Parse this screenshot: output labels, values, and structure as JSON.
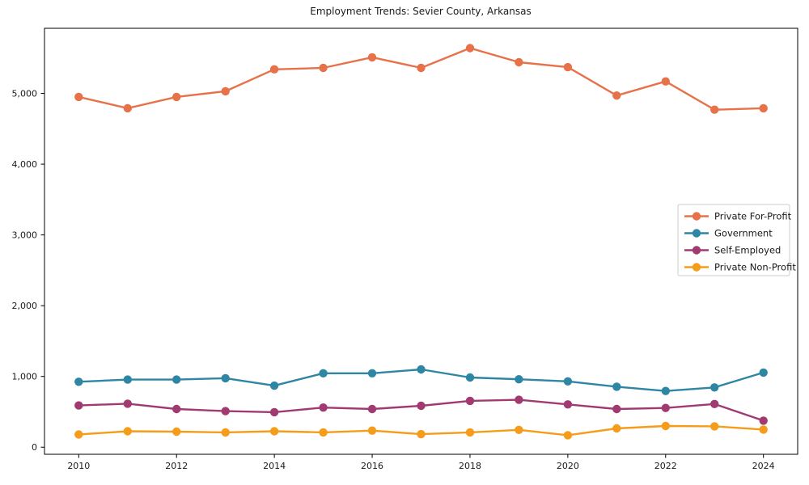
{
  "chart_data": {
    "type": "line",
    "title": "Employment Trends: Sevier County, Arkansas",
    "xlabel": "",
    "ylabel": "",
    "grid": false,
    "legend_position": "center right",
    "x": [
      2010,
      2011,
      2012,
      2013,
      2014,
      2015,
      2016,
      2017,
      2018,
      2019,
      2020,
      2021,
      2022,
      2023,
      2024
    ],
    "x_ticks": [
      2010,
      2012,
      2014,
      2016,
      2018,
      2020,
      2022,
      2024
    ],
    "x_tick_labels": [
      "2010",
      "2012",
      "2014",
      "2016",
      "2018",
      "2020",
      "2022",
      "2024"
    ],
    "y_ticks": [
      0,
      1000,
      2000,
      3000,
      4000,
      5000
    ],
    "y_tick_labels": [
      "0",
      "1,000",
      "2,000",
      "3,000",
      "4,000",
      "5,000"
    ],
    "xlim": [
      2009.3,
      2024.7
    ],
    "ylim": [
      -100,
      5920
    ],
    "series": [
      {
        "name": "Private For-Profit",
        "color": "#e7724a",
        "values": [
          4950,
          4790,
          4950,
          5030,
          5340,
          5360,
          5510,
          5360,
          5640,
          5440,
          5370,
          4970,
          5170,
          4770,
          4790
        ]
      },
      {
        "name": "Government",
        "color": "#2e86a5",
        "values": [
          925,
          955,
          955,
          975,
          870,
          1045,
          1045,
          1100,
          985,
          960,
          930,
          855,
          795,
          845,
          1055
        ]
      },
      {
        "name": "Self-Employed",
        "color": "#a23a72",
        "values": [
          590,
          615,
          540,
          510,
          495,
          560,
          540,
          585,
          655,
          670,
          605,
          540,
          555,
          610,
          375
        ]
      },
      {
        "name": "Private Non-Profit",
        "color": "#f59c1a",
        "values": [
          180,
          225,
          220,
          210,
          225,
          210,
          235,
          185,
          210,
          245,
          170,
          265,
          300,
          295,
          250
        ]
      }
    ]
  }
}
